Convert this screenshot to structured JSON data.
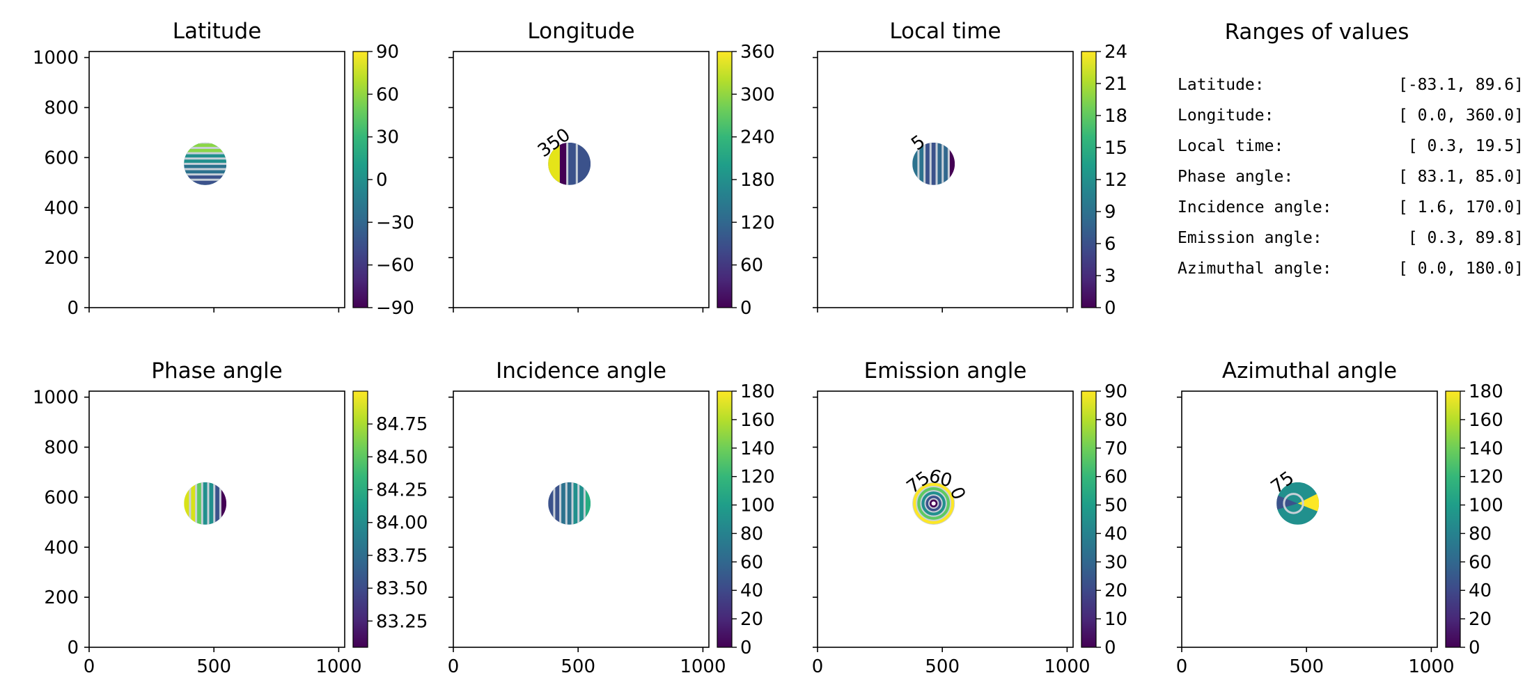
{
  "chart_data": [
    {
      "type": "heatmap",
      "title": "Latitude",
      "xlim": [
        0,
        1024
      ],
      "ylim": [
        0,
        1024
      ],
      "xticks": [
        0,
        500,
        1000
      ],
      "yticks": [
        0,
        200,
        400,
        600,
        800,
        1000
      ],
      "show_xticklabels": false,
      "show_yticklabels": true,
      "colorbar": {
        "min": -90,
        "max": 90,
        "ticks": [
          90,
          60,
          30,
          0,
          -30,
          -60,
          -90
        ],
        "tick_labels": [
          "90",
          "60",
          "30",
          "0",
          "−30",
          "−60",
          "−90"
        ]
      },
      "disc": {
        "center": [
          465,
          575
        ],
        "radius": 85,
        "pattern": "horizontal-bands",
        "colors": [
          "#8bd646",
          "#21908d",
          "#2c728e",
          "#3b528b"
        ]
      },
      "contour_labels": []
    },
    {
      "type": "heatmap",
      "title": "Longitude",
      "xlim": [
        0,
        1024
      ],
      "ylim": [
        0,
        1024
      ],
      "xticks": [
        0,
        500,
        1000
      ],
      "yticks": [
        0,
        200,
        400,
        600,
        800,
        1000
      ],
      "show_xticklabels": false,
      "show_yticklabels": false,
      "colorbar": {
        "min": 0,
        "max": 360,
        "ticks": [
          360,
          300,
          240,
          180,
          120,
          60,
          0
        ],
        "tick_labels": [
          "360",
          "300",
          "240",
          "180",
          "120",
          "60",
          "0"
        ]
      },
      "disc": {
        "center": [
          465,
          575
        ],
        "radius": 85,
        "pattern": "longitude",
        "colors": [
          "#e5e419",
          "#440154",
          "#414487",
          "#3b528b"
        ]
      },
      "contour_labels": [
        "350"
      ]
    },
    {
      "type": "heatmap",
      "title": "Local time",
      "xlim": [
        0,
        1024
      ],
      "ylim": [
        0,
        1024
      ],
      "xticks": [
        0,
        500,
        1000
      ],
      "yticks": [
        0,
        200,
        400,
        600,
        800,
        1000
      ],
      "show_xticklabels": false,
      "show_yticklabels": false,
      "colorbar": {
        "min": 0,
        "max": 24,
        "ticks": [
          24,
          21,
          18,
          15,
          12,
          9,
          6,
          3,
          0
        ],
        "tick_labels": [
          "24",
          "21",
          "18",
          "15",
          "12",
          "9",
          "6",
          "3",
          "0"
        ]
      },
      "disc": {
        "center": [
          465,
          575
        ],
        "radius": 85,
        "pattern": "vertical-bands",
        "colors": [
          "#2c728e",
          "#3b528b",
          "#31688e",
          "#440154"
        ]
      },
      "contour_labels": [
        "5"
      ]
    },
    {
      "type": "heatmap",
      "title": "Phase angle",
      "xlim": [
        0,
        1024
      ],
      "ylim": [
        0,
        1024
      ],
      "xticks": [
        0,
        500,
        1000
      ],
      "yticks": [
        0,
        200,
        400,
        600,
        800,
        1000
      ],
      "show_xticklabels": true,
      "show_yticklabels": true,
      "colorbar": {
        "min": 83.05,
        "max": 85.0,
        "ticks": [
          84.75,
          84.5,
          84.25,
          84.0,
          83.75,
          83.5,
          83.25
        ],
        "tick_labels": [
          "84.75",
          "84.50",
          "84.25",
          "84.00",
          "83.75",
          "83.50",
          "83.25"
        ]
      },
      "disc": {
        "center": [
          465,
          575
        ],
        "radius": 85,
        "pattern": "vertical-bands",
        "colors": [
          "#d8e219",
          "#5ec962",
          "#21908d",
          "#3b528b",
          "#440154"
        ]
      },
      "contour_labels": []
    },
    {
      "type": "heatmap",
      "title": "Incidence angle",
      "xlim": [
        0,
        1024
      ],
      "ylim": [
        0,
        1024
      ],
      "xticks": [
        0,
        500,
        1000
      ],
      "yticks": [
        0,
        200,
        400,
        600,
        800,
        1000
      ],
      "show_xticklabels": true,
      "show_yticklabels": false,
      "colorbar": {
        "min": 0,
        "max": 180,
        "ticks": [
          180,
          160,
          140,
          120,
          100,
          80,
          60,
          40,
          20,
          0
        ],
        "tick_labels": [
          "180",
          "160",
          "140",
          "120",
          "100",
          "80",
          "60",
          "40",
          "20",
          "0"
        ]
      },
      "disc": {
        "center": [
          465,
          575
        ],
        "radius": 85,
        "pattern": "vertical-bands",
        "colors": [
          "#3b528b",
          "#2c728e",
          "#21908d",
          "#27ad81"
        ]
      },
      "contour_labels": []
    },
    {
      "type": "heatmap",
      "title": "Emission angle",
      "xlim": [
        0,
        1024
      ],
      "ylim": [
        0,
        1024
      ],
      "xticks": [
        0,
        500,
        1000
      ],
      "yticks": [
        0,
        200,
        400,
        600,
        800,
        1000
      ],
      "show_xticklabels": true,
      "show_yticklabels": false,
      "colorbar": {
        "min": 0,
        "max": 90,
        "ticks": [
          90,
          80,
          70,
          60,
          50,
          40,
          30,
          20,
          10,
          0
        ],
        "tick_labels": [
          "90",
          "80",
          "70",
          "60",
          "50",
          "40",
          "30",
          "20",
          "10",
          "0"
        ]
      },
      "disc": {
        "center": [
          465,
          575
        ],
        "radius": 85,
        "pattern": "rings",
        "colors": [
          "#fde725",
          "#5ec962",
          "#21908d",
          "#3b528b",
          "#440154"
        ]
      },
      "contour_labels": [
        "75",
        "60",
        "0"
      ]
    },
    {
      "type": "heatmap",
      "title": "Azimuthal angle",
      "xlim": [
        0,
        1024
      ],
      "ylim": [
        0,
        1024
      ],
      "xticks": [
        0,
        500,
        1000
      ],
      "yticks": [
        0,
        200,
        400,
        600,
        800,
        1000
      ],
      "show_xticklabels": true,
      "show_yticklabels": false,
      "colorbar": {
        "min": 0,
        "max": 180,
        "ticks": [
          180,
          160,
          140,
          120,
          100,
          80,
          60,
          40,
          20,
          0
        ],
        "tick_labels": [
          "180",
          "160",
          "140",
          "120",
          "100",
          "80",
          "60",
          "40",
          "20",
          "0"
        ]
      },
      "disc": {
        "center": [
          465,
          575
        ],
        "radius": 85,
        "pattern": "azimuth",
        "colors": [
          "#21908d",
          "#fde725",
          "#3b528b",
          "#27ad81"
        ]
      },
      "contour_labels": [
        "75"
      ]
    }
  ],
  "ranges_panel": {
    "title": "Ranges of values",
    "rows": [
      {
        "label": "Latitude:",
        "value": "[-83.1,  89.6]"
      },
      {
        "label": "Longitude:",
        "value": "[  0.0, 360.0]"
      },
      {
        "label": "Local time:",
        "value": "[  0.3,  19.5]"
      },
      {
        "label": "Phase angle:",
        "value": "[ 83.1,  85.0]"
      },
      {
        "label": "Incidence angle:",
        "value": "[  1.6, 170.0]"
      },
      {
        "label": "Emission angle:",
        "value": "[  0.3,  89.8]"
      },
      {
        "label": "Azimuthal angle:",
        "value": "[  0.0, 180.0]"
      }
    ]
  },
  "colormap": "viridis"
}
